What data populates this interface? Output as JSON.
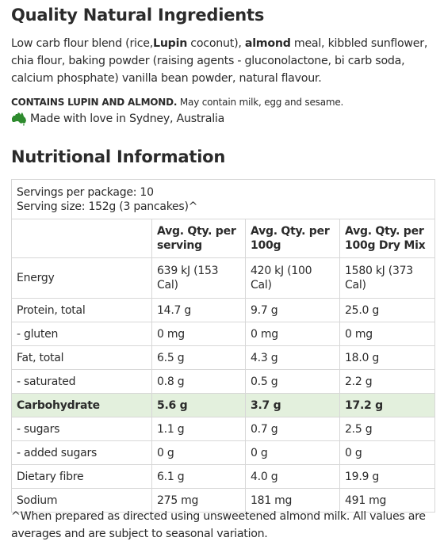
{
  "ingredients": {
    "title": "Quality Natural Ingredients",
    "list": {
      "part1": "Low carb flour blend (rice,",
      "lupin": "Lupin",
      "part2": " coconut), ",
      "almond": "almond",
      "part3": " meal, kibbled sunflower, chia flour, baking powder (raising agents - gluconolactone, bi carb soda, calcium phosphate) vanilla bean powder, natural flavour."
    },
    "contains_bold": "CONTAINS LUPIN AND ALMOND.",
    "contains_rest": " May contain milk, egg and sesame.",
    "made_with": "Made with love in Sydney, Australia",
    "icon": "australia-map-icon",
    "icon_color": "#2e8b2e"
  },
  "nutrition": {
    "title": "Nutritional Information",
    "servings_per_package": "Servings per package: 10",
    "serving_size": "Serving size: 152g (3 pancakes)^",
    "columns": [
      "",
      "Avg. Qty. per serving",
      "Avg. Qty. per 100g",
      "Avg. Qty. per 100g Dry Mix"
    ],
    "rows": [
      {
        "label": "Energy",
        "serving": "639 kJ (153 Cal)",
        "per100g": "420 kJ (100 Cal)",
        "dry": "1580 kJ (373 Cal)"
      },
      {
        "label": "Protein, total",
        "serving": "14.7 g",
        "per100g": "9.7 g",
        "dry": "25.0 g"
      },
      {
        "label": "- gluten",
        "serving": "0 mg",
        "per100g": "0 mg",
        "dry": "0 mg"
      },
      {
        "label": "Fat, total",
        "serving": "6.5 g",
        "per100g": "4.3 g",
        "dry": "18.0 g"
      },
      {
        "label": "- saturated",
        "serving": "0.8 g",
        "per100g": "0.5 g",
        "dry": "2.2 g"
      },
      {
        "label": "Carbohydrate",
        "serving": "5.6 g",
        "per100g": "3.7 g",
        "dry": "17.2 g"
      },
      {
        "label": "- sugars",
        "serving": "1.1 g",
        "per100g": "0.7 g",
        "dry": "2.5 g"
      },
      {
        "label": "- added sugars",
        "serving": "0 g",
        "per100g": "0 g",
        "dry": "0 g"
      },
      {
        "label": "Dietary fibre",
        "serving": "6.1 g",
        "per100g": "4.0 g",
        "dry": "19.9 g"
      },
      {
        "label": "Sodium",
        "serving": "275 mg",
        "per100g": "181 mg",
        "dry": "491 mg"
      }
    ],
    "highlight_color": "#e3f0dd",
    "footnote": "^When prepared as directed using unsweetened almond milk. All values are averages and are subject to seasonal variation."
  }
}
